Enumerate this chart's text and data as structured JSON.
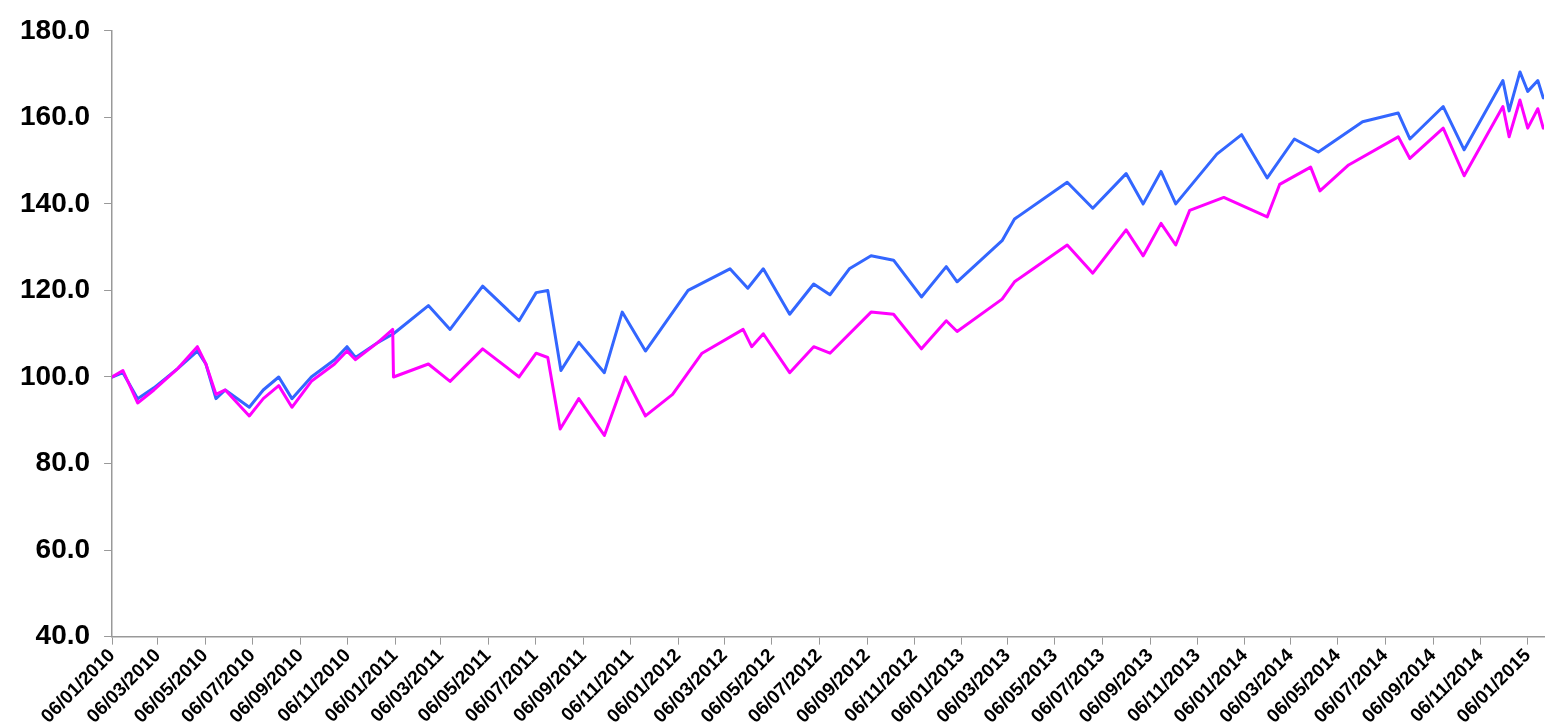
{
  "chart_data": {
    "type": "line",
    "xlim": [
      "2010-01-06",
      "2015-01-27"
    ],
    "ylim": [
      40,
      180
    ],
    "yticks": [
      {
        "value": 40,
        "label": "40.0"
      },
      {
        "value": 60,
        "label": "60.0"
      },
      {
        "value": 80,
        "label": "80.0"
      },
      {
        "value": 100,
        "label": "100.0"
      },
      {
        "value": 120,
        "label": "120.0"
      },
      {
        "value": 140,
        "label": "140.0"
      },
      {
        "value": 160,
        "label": "160.0"
      },
      {
        "value": 180,
        "label": "180.0"
      }
    ],
    "xticks": [
      {
        "value": "2010-01-06",
        "label": "06/01/2010"
      },
      {
        "value": "2010-03-06",
        "label": "06/03/2010"
      },
      {
        "value": "2010-05-06",
        "label": "06/05/2010"
      },
      {
        "value": "2010-07-06",
        "label": "06/07/2010"
      },
      {
        "value": "2010-09-06",
        "label": "06/09/2010"
      },
      {
        "value": "2010-11-06",
        "label": "06/11/2010"
      },
      {
        "value": "2011-01-06",
        "label": "06/01/2011"
      },
      {
        "value": "2011-03-06",
        "label": "06/03/2011"
      },
      {
        "value": "2011-05-06",
        "label": "06/05/2011"
      },
      {
        "value": "2011-07-06",
        "label": "06/07/2011"
      },
      {
        "value": "2011-09-06",
        "label": "06/09/2011"
      },
      {
        "value": "2011-11-06",
        "label": "06/11/2011"
      },
      {
        "value": "2012-01-06",
        "label": "06/01/2012"
      },
      {
        "value": "2012-03-06",
        "label": "06/03/2012"
      },
      {
        "value": "2012-05-06",
        "label": "06/05/2012"
      },
      {
        "value": "2012-07-06",
        "label": "06/07/2012"
      },
      {
        "value": "2012-09-06",
        "label": "06/09/2012"
      },
      {
        "value": "2012-11-06",
        "label": "06/11/2012"
      },
      {
        "value": "2013-01-06",
        "label": "06/01/2013"
      },
      {
        "value": "2013-03-06",
        "label": "06/03/2013"
      },
      {
        "value": "2013-05-06",
        "label": "06/05/2013"
      },
      {
        "value": "2013-07-06",
        "label": "06/07/2013"
      },
      {
        "value": "2013-09-06",
        "label": "06/09/2013"
      },
      {
        "value": "2013-11-06",
        "label": "06/11/2013"
      },
      {
        "value": "2014-01-06",
        "label": "06/01/2014"
      },
      {
        "value": "2014-03-06",
        "label": "06/03/2014"
      },
      {
        "value": "2014-05-06",
        "label": "06/05/2014"
      },
      {
        "value": "2014-07-06",
        "label": "06/07/2014"
      },
      {
        "value": "2014-09-06",
        "label": "06/09/2014"
      },
      {
        "value": "2014-11-06",
        "label": "06/11/2014"
      },
      {
        "value": "2015-01-06",
        "label": "06/01/2015"
      }
    ],
    "marker": "none",
    "line_style": "solid",
    "series": [
      {
        "color": "#ff00ff",
        "x": [
          "2010-01-06",
          "2010-01-20",
          "2010-02-08",
          "2010-03-01",
          "2010-04-01",
          "2010-04-26",
          "2010-05-07",
          "2010-05-20",
          "2010-06-01",
          "2010-07-02",
          "2010-07-20",
          "2010-08-09",
          "2010-08-26",
          "2010-09-20",
          "2010-10-20",
          "2010-11-05",
          "2010-11-16",
          "2010-12-15",
          "2011-01-03",
          "2011-01-04",
          "2011-02-18",
          "2011-03-18",
          "2011-04-29",
          "2011-06-15",
          "2011-07-07",
          "2011-07-22",
          "2011-08-07",
          "2011-08-31",
          "2011-10-03",
          "2011-10-30",
          "2011-11-25",
          "2011-12-30",
          "2012-02-06",
          "2012-03-30",
          "2012-04-10",
          "2012-04-25",
          "2012-05-29",
          "2012-06-29",
          "2012-07-20",
          "2012-09-11",
          "2012-10-10",
          "2012-11-15",
          "2012-12-17",
          "2012-12-31",
          "2013-02-27",
          "2013-03-15",
          "2013-04-04",
          "2013-05-22",
          "2013-06-24",
          "2013-08-06",
          "2013-08-28",
          "2013-09-20",
          "2013-10-09",
          "2013-10-27",
          "2013-12-10",
          "2014-02-04",
          "2014-02-20",
          "2014-04-01",
          "2014-04-13",
          "2014-05-20",
          "2014-07-23",
          "2014-08-07",
          "2014-09-19",
          "2014-10-16",
          "2014-12-05",
          "2014-12-13",
          "2014-12-27",
          "2015-01-06",
          "2015-01-19",
          "2015-01-26"
        ],
        "values": [
          100,
          101.5,
          94,
          97,
          102,
          107,
          103,
          96,
          97,
          91,
          95,
          98,
          93,
          99,
          103,
          106,
          104,
          108,
          111,
          100,
          103,
          99,
          106.5,
          100,
          105.5,
          104.5,
          88,
          95,
          86.5,
          100,
          91,
          96,
          105.5,
          111,
          107,
          110,
          101,
          107,
          105.5,
          115,
          114.5,
          106.5,
          113,
          110.5,
          118,
          122,
          124.5,
          130.5,
          124,
          134,
          128,
          135.5,
          130.5,
          138.5,
          141.5,
          137,
          144.5,
          148.5,
          143,
          149,
          155.5,
          150.5,
          157.5,
          146.5,
          162.5,
          155.5,
          164,
          157.5,
          162,
          157.5
        ]
      },
      {
        "color": "#3366ff",
        "x": [
          "2010-01-06",
          "2010-01-20",
          "2010-02-08",
          "2010-03-01",
          "2010-04-01",
          "2010-04-26",
          "2010-05-07",
          "2010-05-20",
          "2010-06-01",
          "2010-07-02",
          "2010-07-20",
          "2010-08-09",
          "2010-08-26",
          "2010-09-20",
          "2010-10-20",
          "2010-11-05",
          "2010-11-16",
          "2010-12-15",
          "2011-01-04",
          "2011-02-18",
          "2011-03-18",
          "2011-04-29",
          "2011-06-15",
          "2011-07-07",
          "2011-07-22",
          "2011-08-08",
          "2011-08-31",
          "2011-10-03",
          "2011-10-26",
          "2011-11-25",
          "2012-01-19",
          "2012-03-13",
          "2012-04-05",
          "2012-04-25",
          "2012-05-29",
          "2012-06-29",
          "2012-07-20",
          "2012-08-14",
          "2012-09-11",
          "2012-10-10",
          "2012-11-15",
          "2012-12-17",
          "2012-12-31",
          "2013-02-27",
          "2013-03-15",
          "2013-05-22",
          "2013-06-24",
          "2013-08-06",
          "2013-08-28",
          "2013-09-20",
          "2013-10-09",
          "2013-12-01",
          "2014-01-02",
          "2014-02-04",
          "2014-03-11",
          "2014-04-11",
          "2014-06-07",
          "2014-07-23",
          "2014-08-07",
          "2014-09-19",
          "2014-10-16",
          "2014-12-05",
          "2014-12-13",
          "2014-12-27",
          "2015-01-06",
          "2015-01-19",
          "2015-01-26"
        ],
        "values": [
          100,
          101,
          95,
          97.5,
          102,
          106,
          103,
          95,
          97,
          93,
          97,
          100,
          95,
          100,
          104,
          107,
          104.5,
          108,
          110,
          116.5,
          111,
          121,
          113,
          119.5,
          120,
          101.5,
          108,
          101,
          115,
          106,
          120,
          125,
          120.5,
          125,
          114.5,
          121.5,
          119,
          125,
          128,
          127,
          118.5,
          125.5,
          122,
          131.5,
          136.5,
          145,
          139,
          147,
          140,
          147.5,
          140,
          151.5,
          156,
          146,
          155,
          152,
          159,
          161,
          155,
          162.5,
          152.5,
          168.5,
          161.5,
          170.5,
          166,
          168.5,
          164.5
        ]
      }
    ]
  }
}
